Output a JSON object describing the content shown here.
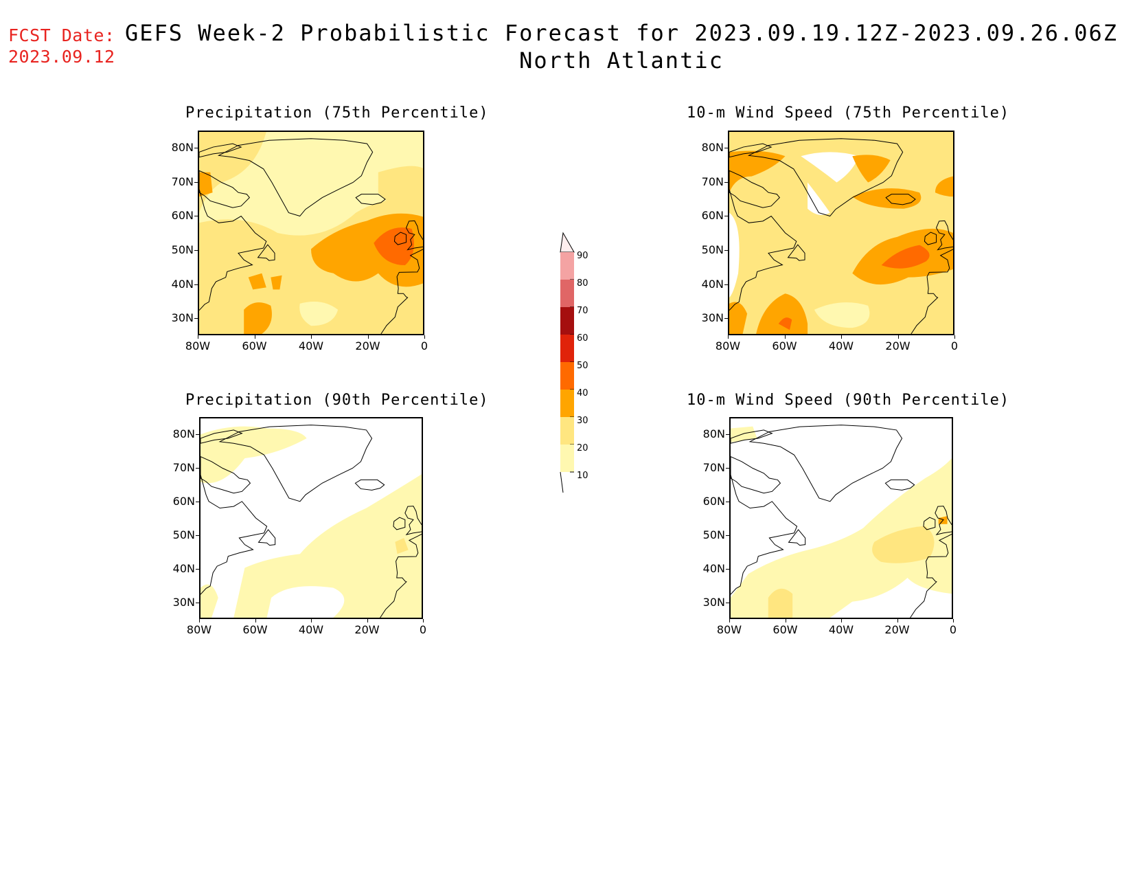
{
  "header": {
    "fcst_label": "FCST Date:",
    "fcst_date": "2023.09.12",
    "title_line1": "GEFS Week-2 Probabilistic Forecast for 2023.09.19.12Z-2023.09.26.06Z",
    "title_line2": "North Atlantic"
  },
  "axes": {
    "lat_ticks": [
      "80N",
      "70N",
      "60N",
      "50N",
      "40N",
      "30N"
    ],
    "lon_ticks": [
      "80W",
      "60W",
      "40W",
      "20W",
      "0"
    ]
  },
  "panels": [
    {
      "title": "Precipitation (75th Percentile)",
      "coverage": "high"
    },
    {
      "title": "10-m Wind Speed (75th Percentile)",
      "coverage": "high"
    },
    {
      "title": "Precipitation (90th Percentile)",
      "coverage": "low"
    },
    {
      "title": "10-m Wind Speed (90th Percentile)",
      "coverage": "low"
    }
  ],
  "colorbar": {
    "levels": [
      "90",
      "80",
      "70",
      "60",
      "50",
      "40",
      "30",
      "20",
      "10"
    ],
    "colors": [
      "#fde8e8",
      "#f4a3a3",
      "#e06666",
      "#a50f0f",
      "#e0230a",
      "#ff6a00",
      "#ffa500",
      "#ffe680",
      "#fff8b0"
    ]
  }
}
